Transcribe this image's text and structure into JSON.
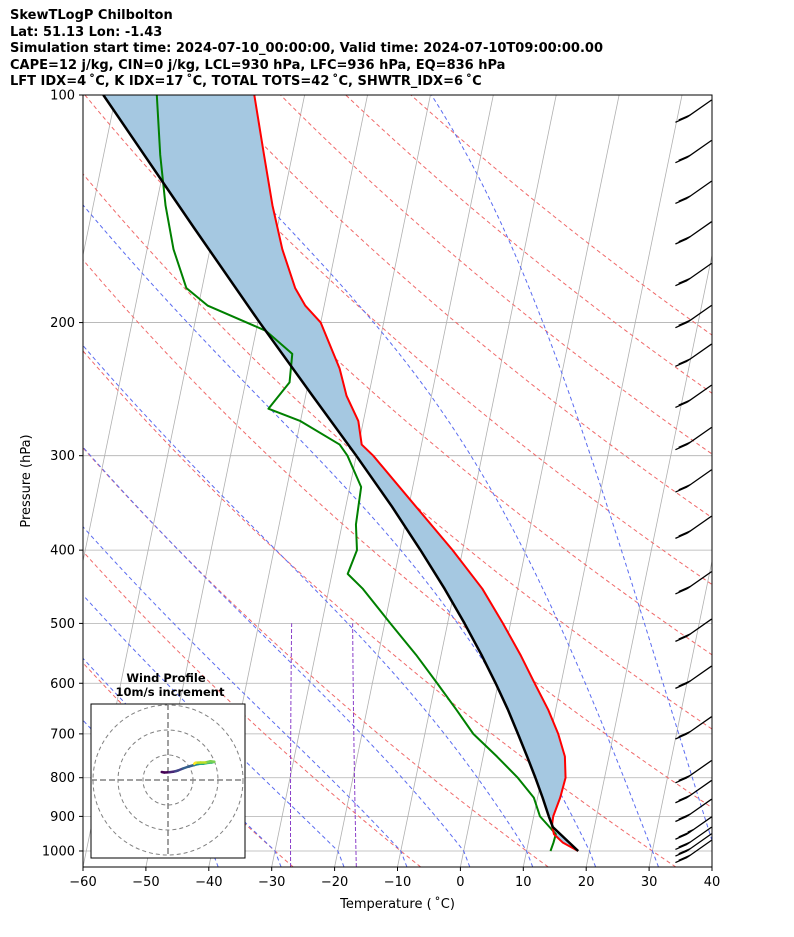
{
  "header": {
    "line1": "SkewTLogP Chilbolton",
    "line2": "Lat: 51.13   Lon: -1.43",
    "line3": "Simulation start time: 2024-07-10_00:00:00, Valid time: 2024-07-10T09:00:00.00",
    "line4": "CAPE=12 j/kg, CIN=0 j/kg, LCL=930 hPa, LFC=936 hPa, EQ=836 hPa",
    "line5": "LFT IDX=4 ˚C, K IDX=17 ˚C, TOTAL TOTS=42 ˚C, SHWTR_IDX=6 ˚C"
  },
  "chart_data": {
    "type": "skew-t log-p",
    "xlabel": "Temperature ( ˚C)",
    "ylabel": "Pressure (hPa)",
    "xlim": [
      -60,
      40
    ],
    "ylim": [
      1050,
      100
    ],
    "x_ticks": [
      -60,
      -50,
      -40,
      -30,
      -20,
      -10,
      0,
      10,
      20,
      30,
      40
    ],
    "x_tick_labels": [
      "−60",
      "−50",
      "−40",
      "−30",
      "−20",
      "−10",
      "0",
      "10",
      "20",
      "30",
      "40"
    ],
    "y_ticks": [
      1000,
      900,
      800,
      700,
      600,
      500,
      400,
      300,
      200,
      100
    ],
    "y_tick_labels": [
      "1000",
      "900",
      "800",
      "700",
      "600",
      "500",
      "400",
      "300",
      "200",
      "100"
    ],
    "grid": true,
    "colors": {
      "temperature": "#ff0000",
      "dewpoint": "#008000",
      "parcel": "#000000",
      "cape_fill": "#a5c8e1",
      "isotherm": "#b0b0b0",
      "dry_adiabat": "#f06a6a",
      "moist_adiabat": "#5b6cf0",
      "mixing_ratio": "#8a3fc9"
    },
    "temperature_profile": [
      [
        1000,
        18.2
      ],
      [
        975,
        15.5
      ],
      [
        950,
        13.8
      ],
      [
        925,
        13.2
      ],
      [
        900,
        13.1
      ],
      [
        850,
        13.6
      ],
      [
        800,
        13.8
      ],
      [
        750,
        13.0
      ],
      [
        700,
        11.2
      ],
      [
        650,
        8.8
      ],
      [
        600,
        5.8
      ],
      [
        550,
        2.6
      ],
      [
        500,
        -1.2
      ],
      [
        450,
        -5.6
      ],
      [
        400,
        -11.6
      ],
      [
        350,
        -18.9
      ],
      [
        300,
        -27.3
      ],
      [
        290,
        -29.5
      ],
      [
        270,
        -30.8
      ],
      [
        250,
        -33.5
      ],
      [
        230,
        -35.5
      ],
      [
        200,
        -40.0
      ],
      [
        190,
        -43.0
      ],
      [
        180,
        -45.2
      ],
      [
        160,
        -48.5
      ],
      [
        140,
        -51.5
      ],
      [
        120,
        -54.5
      ],
      [
        100,
        -58.0
      ]
    ],
    "dewpoint_profile": [
      [
        1000,
        13.8
      ],
      [
        975,
        14.0
      ],
      [
        950,
        14.1
      ],
      [
        900,
        11.0
      ],
      [
        850,
        9.4
      ],
      [
        800,
        6.2
      ],
      [
        750,
        2.2
      ],
      [
        700,
        -2.3
      ],
      [
        650,
        -5.8
      ],
      [
        600,
        -9.7
      ],
      [
        550,
        -14.0
      ],
      [
        500,
        -19.1
      ],
      [
        450,
        -24.6
      ],
      [
        430,
        -27.5
      ],
      [
        400,
        -26.8
      ],
      [
        370,
        -27.8
      ],
      [
        350,
        -28.0
      ],
      [
        330,
        -28.2
      ],
      [
        300,
        -31.4
      ],
      [
        290,
        -33.0
      ],
      [
        270,
        -40.0
      ],
      [
        260,
        -45.5
      ],
      [
        240,
        -43.0
      ],
      [
        220,
        -43.5
      ],
      [
        205,
        -48.5
      ],
      [
        190,
        -58.5
      ],
      [
        180,
        -62.5
      ],
      [
        160,
        -65.8
      ],
      [
        140,
        -68.5
      ],
      [
        120,
        -71.0
      ],
      [
        100,
        -73.5
      ]
    ],
    "parcel_profile": [
      [
        1000,
        18.2
      ],
      [
        930,
        13.4
      ],
      [
        900,
        12.4
      ],
      [
        850,
        10.8
      ],
      [
        800,
        9.0
      ],
      [
        750,
        7.0
      ],
      [
        700,
        4.8
      ],
      [
        650,
        2.4
      ],
      [
        600,
        -0.4
      ],
      [
        550,
        -3.6
      ],
      [
        500,
        -7.3
      ],
      [
        450,
        -11.6
      ],
      [
        400,
        -16.7
      ],
      [
        350,
        -22.7
      ],
      [
        300,
        -30.0
      ],
      [
        250,
        -38.9
      ],
      [
        200,
        -49.7
      ],
      [
        150,
        -63.2
      ],
      [
        100,
        -82.0
      ]
    ],
    "wind_barbs": [
      {
        "p": 1020,
        "speed_kt": 20
      },
      {
        "p": 1000,
        "speed_kt": 20
      },
      {
        "p": 980,
        "speed_kt": 20
      },
      {
        "p": 950,
        "speed_kt": 25
      },
      {
        "p": 900,
        "speed_kt": 20
      },
      {
        "p": 850,
        "speed_kt": 20
      },
      {
        "p": 800,
        "speed_kt": 20
      },
      {
        "p": 700,
        "speed_kt": 20
      },
      {
        "p": 600,
        "speed_kt": 20
      },
      {
        "p": 520,
        "speed_kt": 20
      },
      {
        "p": 450,
        "speed_kt": 20
      },
      {
        "p": 380,
        "speed_kt": 20
      },
      {
        "p": 330,
        "speed_kt": 20
      },
      {
        "p": 290,
        "speed_kt": 20
      },
      {
        "p": 255,
        "speed_kt": 20
      },
      {
        "p": 225,
        "speed_kt": 20
      },
      {
        "p": 200,
        "speed_kt": 20
      },
      {
        "p": 176,
        "speed_kt": 20
      },
      {
        "p": 155,
        "speed_kt": 20
      },
      {
        "p": 137,
        "speed_kt": 20
      },
      {
        "p": 121,
        "speed_kt": 20
      },
      {
        "p": 107,
        "speed_kt": 20
      }
    ],
    "hodograph": {
      "title": "Wind Profile",
      "subtitle": "10m/s increment",
      "trace_uv": [
        [
          -2.5,
          3.2
        ],
        [
          -1.5,
          3.0
        ],
        [
          0.5,
          3.1
        ],
        [
          2.0,
          3.3
        ],
        [
          3.0,
          3.5
        ],
        [
          4.0,
          3.8
        ],
        [
          6.0,
          4.6
        ],
        [
          8.0,
          5.3
        ],
        [
          10.5,
          6.0
        ],
        [
          12.0,
          6.4
        ],
        [
          11.0,
          6.3
        ],
        [
          13.0,
          6.5
        ],
        [
          14.0,
          6.5
        ],
        [
          15.5,
          6.8
        ],
        [
          17.5,
          7.0
        ],
        [
          18.5,
          7.3
        ],
        [
          17.0,
          7.5
        ],
        [
          15.0,
          7.0
        ],
        [
          13.0,
          7.0
        ],
        [
          11.0,
          6.9
        ],
        [
          10.5,
          6.5
        ]
      ]
    }
  }
}
